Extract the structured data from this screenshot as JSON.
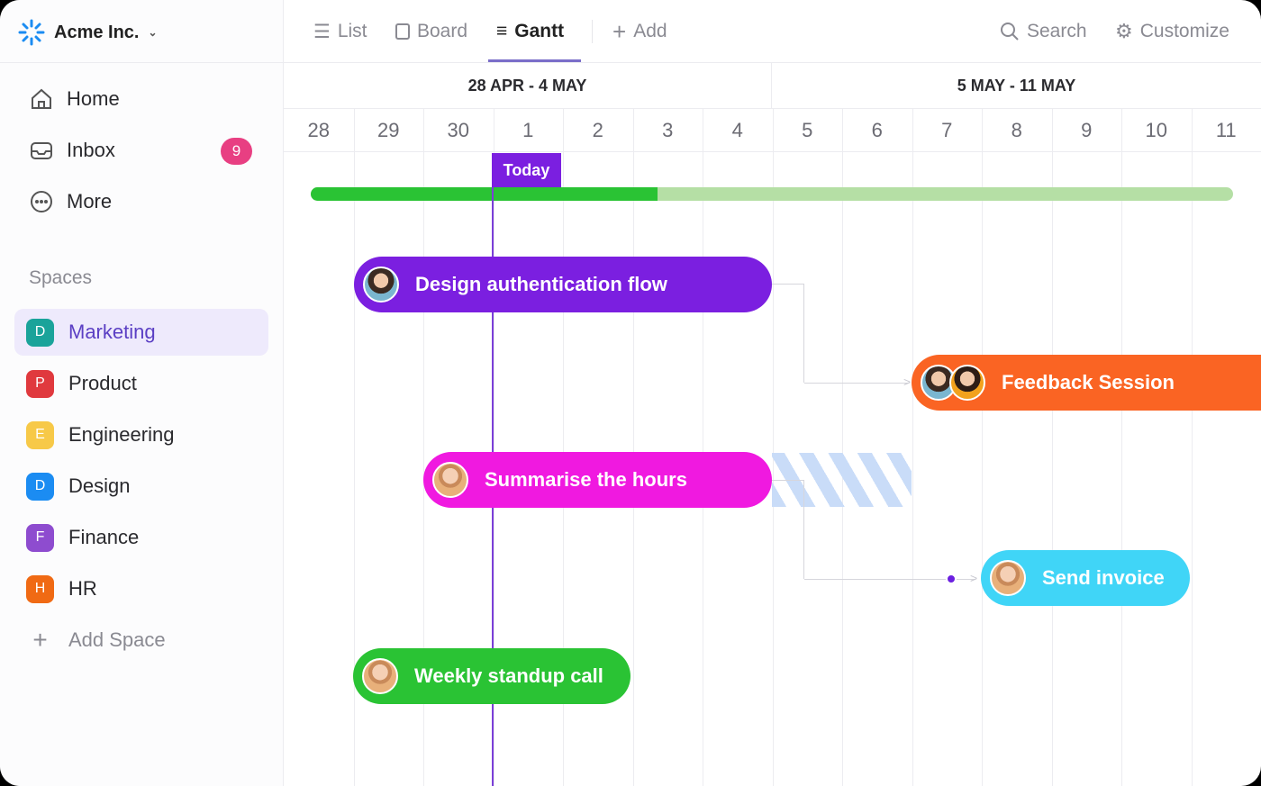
{
  "workspace": {
    "name": "Acme Inc.",
    "icon": "spinner-logo-icon"
  },
  "nav": [
    {
      "label": "Home",
      "icon": "home-icon"
    },
    {
      "label": "Inbox",
      "icon": "inbox-icon",
      "badge": "9"
    },
    {
      "label": "More",
      "icon": "more-icon"
    }
  ],
  "spaces": {
    "heading": "Spaces",
    "items": [
      {
        "letter": "D",
        "label": "Marketing",
        "color": "#1aa39a",
        "active": true
      },
      {
        "letter": "P",
        "label": "Product",
        "color": "#e0393e"
      },
      {
        "letter": "E",
        "label": "Engineering",
        "color": "#f7c948"
      },
      {
        "letter": "D",
        "label": "Design",
        "color": "#1b8cf2"
      },
      {
        "letter": "F",
        "label": "Finance",
        "color": "#8e4ccf"
      },
      {
        "letter": "H",
        "label": "HR",
        "color": "#f06a14"
      }
    ],
    "add_label": "Add Space"
  },
  "tabs": [
    {
      "label": "List",
      "icon": "list-icon"
    },
    {
      "label": "Board",
      "icon": "board-icon"
    },
    {
      "label": "Gantt",
      "icon": "gantt-icon",
      "active": true
    },
    {
      "label": "Add",
      "icon": "plus-icon"
    }
  ],
  "toolbar": {
    "search": "Search",
    "customize": "Customize"
  },
  "weeks": [
    "28 APR - 4 MAY",
    "5 MAY - 11 MAY"
  ],
  "days": [
    "28",
    "29",
    "30",
    "1",
    "2",
    "3",
    "4",
    "5",
    "6",
    "7",
    "8",
    "9",
    "10",
    "11"
  ],
  "today_label": "Today",
  "progress_percent": 37.6,
  "tasks": [
    {
      "name": "Design authentication flow",
      "color": "#7b1fe0"
    },
    {
      "name": "Feedback Session",
      "color": "#fa6423"
    },
    {
      "name": "Summarise the hours",
      "color": "#f019e0"
    },
    {
      "name": "Send invoice",
      "color": "#40d5f7"
    },
    {
      "name": "Weekly standup call",
      "color": "#2ac334"
    }
  ]
}
